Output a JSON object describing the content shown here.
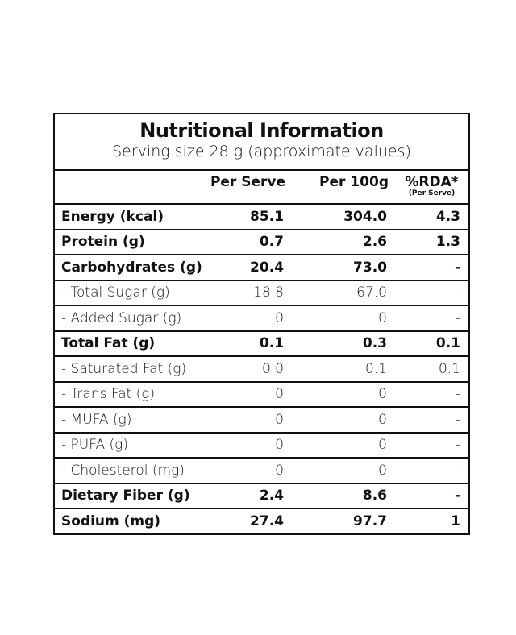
{
  "header": {
    "title": "Nutritional Information",
    "subtitle": "Serving size 28 g (approximate values)"
  },
  "table": {
    "columns": [
      "Per Serve",
      "Per 100g",
      "%RDA*"
    ],
    "columns_note": "(Per Serve)",
    "rows": [
      {
        "label": "Energy (kcal)",
        "bold": true,
        "cells": [
          "85.1",
          "304.0",
          "4.3"
        ]
      },
      {
        "label": "Protein (g)",
        "bold": true,
        "cells": [
          "0.7",
          "2.6",
          "1.3"
        ]
      },
      {
        "label": "Carbohydrates (g)",
        "bold": true,
        "cells": [
          "20.4",
          "73.0",
          "-"
        ]
      },
      {
        "label": "- Total Sugar (g)",
        "bold": false,
        "cells": [
          "18.8",
          "67.0",
          "-"
        ]
      },
      {
        "label": "- Added Sugar (g)",
        "bold": false,
        "cells": [
          "0",
          "0",
          "-"
        ]
      },
      {
        "label": "Total Fat (g)",
        "bold": true,
        "cells": [
          "0.1",
          "0.3",
          "0.1"
        ]
      },
      {
        "label": "- Saturated Fat (g)",
        "bold": false,
        "cells": [
          "0.0",
          "0.1",
          "0.1"
        ]
      },
      {
        "label": "- Trans Fat (g)",
        "bold": false,
        "cells": [
          "0",
          "0",
          "-"
        ]
      },
      {
        "label": "- MUFA (g)",
        "bold": false,
        "cells": [
          "0",
          "0",
          "-"
        ]
      },
      {
        "label": "- PUFA (g)",
        "bold": false,
        "cells": [
          "0",
          "0",
          "-"
        ]
      },
      {
        "label": "- Cholesterol (mg)",
        "bold": false,
        "cells": [
          "0",
          "0",
          "-"
        ]
      },
      {
        "label": "Dietary Fiber (g)",
        "bold": true,
        "cells": [
          "2.4",
          "8.6",
          "-"
        ]
      },
      {
        "label": "Sodium (mg)",
        "bold": true,
        "cells": [
          "27.4",
          "97.7",
          "1"
        ]
      }
    ]
  }
}
